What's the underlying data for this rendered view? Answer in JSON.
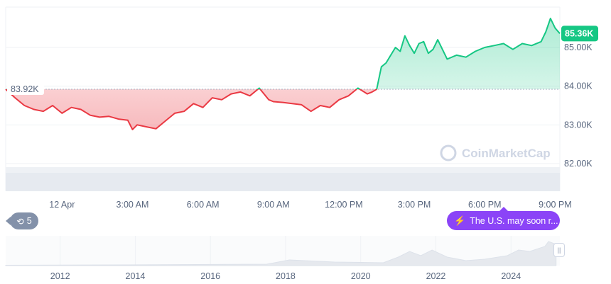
{
  "chart_data": {
    "type": "line",
    "title": "",
    "xlabel": "",
    "ylabel": "",
    "y_tick_labels": [
      "85.00K",
      "84.00K",
      "83.00K",
      "82.00K"
    ],
    "y_ticks": [
      85000,
      84000,
      83000,
      82000
    ],
    "x_tick_labels": [
      "12 Apr",
      "3:00 AM",
      "6:00 AM",
      "9:00 AM",
      "12:00 PM",
      "3:00 PM",
      "6:00 PM",
      "9:00 PM"
    ],
    "x_unit": "hours since 12 Apr 00:00",
    "x_ticks": [
      0,
      3,
      6,
      9,
      12,
      15,
      18,
      21
    ],
    "xlim": [
      -2.4,
      21.2
    ],
    "ylim": [
      81700,
      86000
    ],
    "baseline": 83920,
    "baseline_label": "83.92K",
    "current_price": 85360,
    "current_label": "85.36K",
    "colors": {
      "above": "#16c784",
      "below": "#ea3943",
      "baseline": "#a6b0c3"
    },
    "x": [
      -2.4,
      -2.0,
      -1.6,
      -1.2,
      -0.8,
      -0.4,
      0.0,
      0.4,
      0.8,
      1.2,
      1.6,
      2.0,
      2.4,
      2.8,
      3.0,
      3.2,
      3.6,
      4.0,
      4.4,
      4.8,
      5.2,
      5.6,
      6.0,
      6.4,
      6.8,
      7.2,
      7.6,
      8.0,
      8.4,
      8.8,
      9.0,
      9.4,
      9.8,
      10.2,
      10.6,
      11.0,
      11.4,
      11.8,
      12.2,
      12.6,
      13.0,
      13.2,
      13.4,
      13.6,
      13.8,
      14.0,
      14.2,
      14.4,
      14.6,
      14.8,
      15.0,
      15.2,
      15.4,
      15.6,
      15.8,
      16.0,
      16.4,
      16.8,
      17.2,
      17.6,
      18.0,
      18.4,
      18.8,
      19.2,
      19.6,
      20.0,
      20.4,
      20.6,
      20.8,
      21.0,
      21.2
    ],
    "y": [
      83920,
      83700,
      83500,
      83400,
      83350,
      83500,
      83300,
      83450,
      83400,
      83250,
      83200,
      83220,
      83150,
      83120,
      82880,
      83000,
      82950,
      82900,
      83100,
      83300,
      83350,
      83550,
      83450,
      83700,
      83650,
      83800,
      83850,
      83750,
      83950,
      83650,
      83600,
      83580,
      83550,
      83520,
      83350,
      83500,
      83450,
      83650,
      83750,
      83950,
      83800,
      83850,
      83920,
      84500,
      84600,
      84800,
      85000,
      84900,
      85300,
      85050,
      84850,
      85100,
      85150,
      84850,
      84950,
      85200,
      84700,
      84800,
      84750,
      84900,
      85000,
      85050,
      85100,
      84950,
      85100,
      85050,
      85150,
      85400,
      85750,
      85500,
      85360
    ]
  },
  "watermark": "CoinMarketCap",
  "news": {
    "label": "The U.S. may soon r..."
  },
  "history": {
    "count": "5"
  },
  "overview": {
    "year_labels": [
      "2012",
      "2014",
      "2016",
      "2018",
      "2020",
      "2022",
      "2024"
    ],
    "years": [
      2012,
      2014,
      2016,
      2018,
      2020,
      2022,
      2024
    ],
    "year_range": [
      2010.55,
      2025.3
    ],
    "handle_label": "||"
  }
}
